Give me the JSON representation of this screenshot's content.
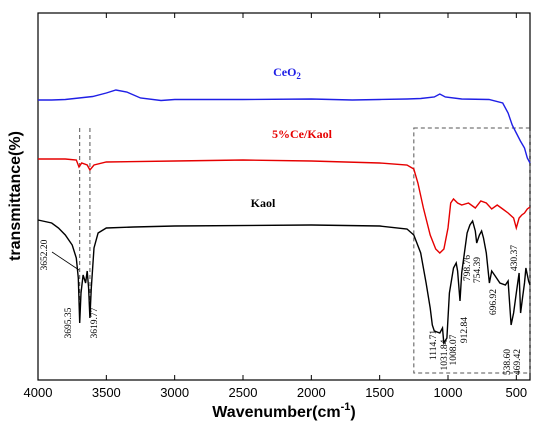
{
  "chart_data": {
    "type": "line",
    "xlabel": "Wavenumber(cm",
    "xlabel_sup": "-1",
    "xlabel_close": ")",
    "ylabel": "transmittance(%)",
    "xlim": [
      4000,
      400
    ],
    "x_reversed": true,
    "xticks": [
      4000,
      3500,
      3000,
      2500,
      2000,
      1500,
      1000,
      500
    ],
    "xtick_labels": [
      "4000",
      "3500",
      "3000",
      "2500",
      "2000",
      "1500",
      "1000",
      "500"
    ],
    "y_ticks_shown": false,
    "grid": false,
    "series": [
      {
        "name": "CeO",
        "name_sub": "2",
        "color": "#1f1fe6",
        "points": [
          [
            4000,
            87
          ],
          [
            3900,
            87
          ],
          [
            3800,
            86.5
          ],
          [
            3700,
            85
          ],
          [
            3600,
            83.5
          ],
          [
            3500,
            80
          ],
          [
            3430,
            77
          ],
          [
            3350,
            79
          ],
          [
            3250,
            85
          ],
          [
            3100,
            87.5
          ],
          [
            3000,
            86.5
          ],
          [
            2500,
            86.5
          ],
          [
            2000,
            86
          ],
          [
            1700,
            87
          ],
          [
            1500,
            86.5
          ],
          [
            1300,
            86
          ],
          [
            1200,
            85.5
          ],
          [
            1100,
            84
          ],
          [
            1060,
            81
          ],
          [
            1020,
            84
          ],
          [
            900,
            86
          ],
          [
            700,
            86.5
          ],
          [
            600,
            90
          ],
          [
            560,
            100
          ],
          [
            530,
            112
          ],
          [
            500,
            120
          ],
          [
            470,
            128
          ],
          [
            440,
            135
          ],
          [
            420,
            145
          ],
          [
            400,
            150
          ]
        ]
      },
      {
        "name": "5%Ce/Kaol",
        "color": "#e60000",
        "points": [
          [
            4000,
            146
          ],
          [
            3800,
            146
          ],
          [
            3720,
            147
          ],
          [
            3700,
            154
          ],
          [
            3680,
            150
          ],
          [
            3640,
            152
          ],
          [
            3620,
            157
          ],
          [
            3590,
            152
          ],
          [
            3500,
            149
          ],
          [
            3000,
            148
          ],
          [
            2500,
            147
          ],
          [
            2000,
            148
          ],
          [
            1500,
            150
          ],
          [
            1300,
            152
          ],
          [
            1250,
            156
          ],
          [
            1220,
            170
          ],
          [
            1180,
            195
          ],
          [
            1130,
            222
          ],
          [
            1090,
            236
          ],
          [
            1060,
            240
          ],
          [
            1030,
            236
          ],
          [
            1000,
            215
          ],
          [
            980,
            190
          ],
          [
            960,
            186
          ],
          [
            930,
            190
          ],
          [
            900,
            192
          ],
          [
            850,
            190
          ],
          [
            800,
            195
          ],
          [
            760,
            188
          ],
          [
            720,
            190
          ],
          [
            680,
            196
          ],
          [
            640,
            192
          ],
          [
            600,
            196
          ],
          [
            560,
            200
          ],
          [
            520,
            205
          ],
          [
            500,
            215
          ],
          [
            480,
            205
          ],
          [
            460,
            202
          ],
          [
            440,
            200
          ],
          [
            420,
            196
          ],
          [
            400,
            194
          ]
        ]
      },
      {
        "name": "Kaol",
        "color": "#000000",
        "points": [
          [
            4000,
            207
          ],
          [
            3900,
            210
          ],
          [
            3850,
            215
          ],
          [
            3800,
            222
          ],
          [
            3750,
            232
          ],
          [
            3720,
            245
          ],
          [
            3705,
            265
          ],
          [
            3695,
            310
          ],
          [
            3685,
            280
          ],
          [
            3670,
            262
          ],
          [
            3652,
            270
          ],
          [
            3640,
            258
          ],
          [
            3630,
            275
          ],
          [
            3620,
            305
          ],
          [
            3610,
            275
          ],
          [
            3590,
            235
          ],
          [
            3560,
            220
          ],
          [
            3500,
            215
          ],
          [
            3300,
            214
          ],
          [
            3000,
            213
          ],
          [
            2000,
            212
          ],
          [
            1500,
            213
          ],
          [
            1300,
            216
          ],
          [
            1250,
            222
          ],
          [
            1200,
            240
          ],
          [
            1160,
            270
          ],
          [
            1130,
            295
          ],
          [
            1115,
            312
          ],
          [
            1100,
            318
          ],
          [
            1060,
            320
          ],
          [
            1040,
            315
          ],
          [
            1031,
            330
          ],
          [
            1008,
            325
          ],
          [
            990,
            280
          ],
          [
            960,
            255
          ],
          [
            940,
            250
          ],
          [
            930,
            258
          ],
          [
            912,
            288
          ],
          [
            900,
            260
          ],
          [
            860,
            220
          ],
          [
            840,
            212
          ],
          [
            820,
            208
          ],
          [
            800,
            218
          ],
          [
            790,
            230
          ],
          [
            770,
            222
          ],
          [
            754,
            218
          ],
          [
            740,
            225
          ],
          [
            720,
            240
          ],
          [
            697,
            270
          ],
          [
            680,
            258
          ],
          [
            660,
            262
          ],
          [
            620,
            270
          ],
          [
            580,
            272
          ],
          [
            560,
            268
          ],
          [
            538,
            312
          ],
          [
            520,
            300
          ],
          [
            500,
            280
          ],
          [
            480,
            260
          ],
          [
            469,
            300
          ],
          [
            455,
            285
          ],
          [
            440,
            270
          ],
          [
            430,
            255
          ],
          [
            410,
            268
          ],
          [
            400,
            272
          ]
        ]
      }
    ],
    "annotations": [
      {
        "label": "3652.20",
        "series": "Kaol"
      },
      {
        "label": "3695.35",
        "series": "Kaol"
      },
      {
        "label": "3619.77",
        "series": "Kaol"
      },
      {
        "label": "1114.71",
        "series": "Kaol"
      },
      {
        "label": "1031.84",
        "series": "Kaol"
      },
      {
        "label": "1008.07",
        "series": "Kaol"
      },
      {
        "label": "912.84",
        "series": "Kaol"
      },
      {
        "label": "798.76",
        "series": "Kaol"
      },
      {
        "label": "754.39",
        "series": "Kaol"
      },
      {
        "label": "696.92",
        "series": "Kaol"
      },
      {
        "label": "538.60",
        "series": "Kaol"
      },
      {
        "label": "469.42",
        "series": "Kaol"
      },
      {
        "label": "430.37",
        "series": "Kaol"
      }
    ],
    "highlight_lines_x": [
      3695,
      3620
    ],
    "highlight_box_x": [
      1250,
      400
    ]
  }
}
